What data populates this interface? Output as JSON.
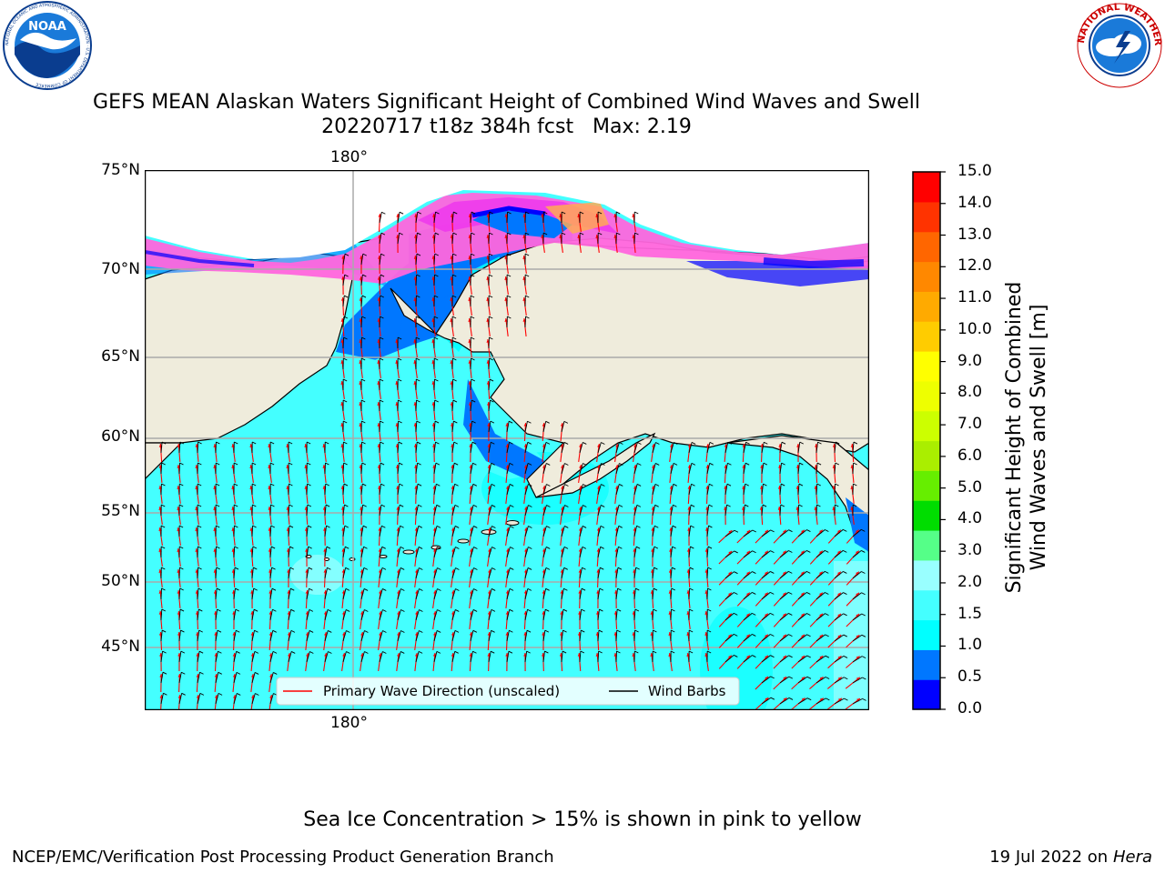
{
  "title": {
    "line1": "GEFS MEAN Alaskan Waters Significant Height of Combined Wind Waves and Swell",
    "line2": "20220717 t18z 384h fcst   Max: 2.19"
  },
  "logos": {
    "left": "NOAA",
    "left_ring": "NATIONAL OCEANIC AND ATMOSPHERIC ADMINISTRATION · U.S. DEPARTMENT OF COMMERCE",
    "right_ring": "NATIONAL WEATHER SERVICE"
  },
  "map": {
    "lat_labels": [
      "75°N",
      "70°N",
      "65°N",
      "60°N",
      "55°N",
      "50°N",
      "45°N"
    ],
    "lon_top": "180°",
    "lon_bottom": "180°",
    "legend": {
      "wave_dir": "Primary Wave Direction (unscaled)",
      "wind_barbs": "Wind Barbs"
    },
    "colors": {
      "land": "#efecdc",
      "ice_pink": "#ff66dd",
      "ice_magenta": "#ee33ee",
      "ice_orange": "#ffaa55",
      "wave_red": "#ff0000",
      "barb": "#000000"
    }
  },
  "colorbar": {
    "ticks": [
      "15.0",
      "14.0",
      "13.0",
      "12.0",
      "11.0",
      "10.0",
      "9.0",
      "8.0",
      "7.0",
      "6.0",
      "5.0",
      "4.0",
      "3.0",
      "2.0",
      "1.5",
      "1.0",
      "0.5",
      "0.0"
    ],
    "colors_bottom_to_top": [
      "#0000ff",
      "#0077ff",
      "#00ffff",
      "#44ffff",
      "#99ffff",
      "#55ff88",
      "#00dd00",
      "#66ee00",
      "#aaee00",
      "#ccff00",
      "#eeff00",
      "#ffff00",
      "#ffcc00",
      "#ffaa00",
      "#ff8800",
      "#ff6600",
      "#ff3300",
      "#ff0000"
    ],
    "label_line1": "Significant Height of Combined",
    "label_line2": "Wind Waves and Swell [m]"
  },
  "ice_note": "Sea Ice Concentration > 15% is shown in pink to yellow",
  "footer": {
    "left": "NCEP/EMC/Verification Post Processing Product Generation Branch",
    "right_prefix": "19 Jul 2022 on ",
    "right_host": "Hera"
  }
}
